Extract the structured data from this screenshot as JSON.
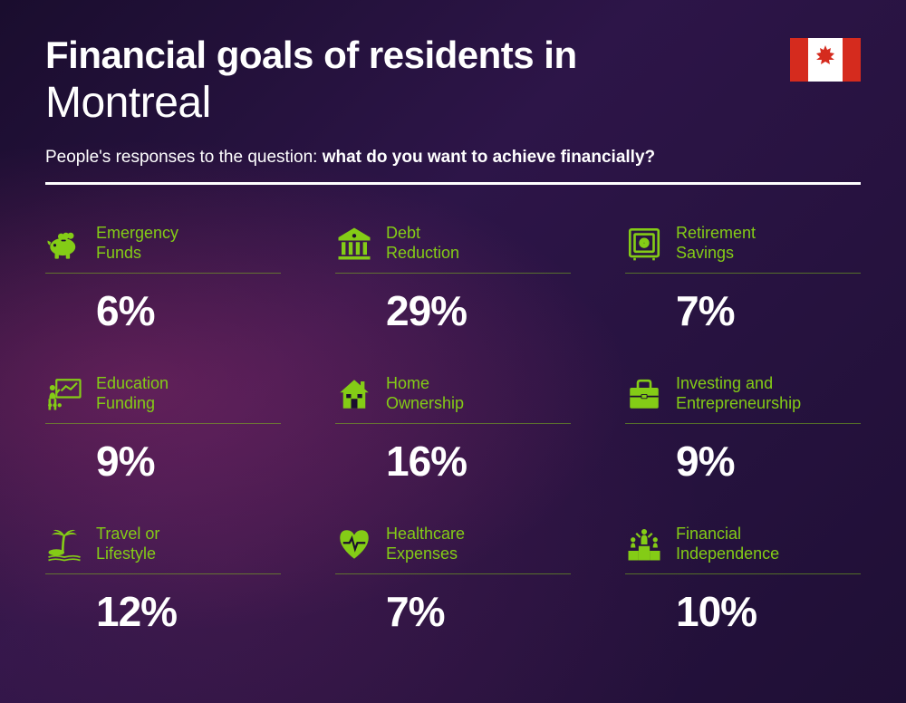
{
  "header": {
    "title_line1": "Financial goals of residents in",
    "title_line2": "Montreal",
    "subtitle_prefix": "People's responses to the question: ",
    "subtitle_bold": "what do you want to achieve financially?"
  },
  "style": {
    "accent_color": "#84cc16",
    "text_color": "#ffffff",
    "value_fontsize": 46,
    "label_fontsize": 18,
    "title1_fontsize": 42,
    "title2_fontsize": 48,
    "grid_cols": 3,
    "flag_red": "#d52b1e"
  },
  "items": [
    {
      "label": "Emergency\nFunds",
      "value": "6%",
      "icon": "piggy-bank-icon"
    },
    {
      "label": "Debt\nReduction",
      "value": "29%",
      "icon": "bank-icon"
    },
    {
      "label": "Retirement\nSavings",
      "value": "7%",
      "icon": "safe-icon"
    },
    {
      "label": "Education\nFunding",
      "value": "9%",
      "icon": "presentation-icon"
    },
    {
      "label": "Home\nOwnership",
      "value": "16%",
      "icon": "house-icon"
    },
    {
      "label": "Investing and Entrepreneurship",
      "value": "9%",
      "icon": "briefcase-icon"
    },
    {
      "label": "Travel or\nLifestyle",
      "value": "12%",
      "icon": "palm-tree-icon"
    },
    {
      "label": "Healthcare\nExpenses",
      "value": "7%",
      "icon": "heart-pulse-icon"
    },
    {
      "label": "Financial\nIndependence",
      "value": "10%",
      "icon": "podium-icon"
    }
  ]
}
